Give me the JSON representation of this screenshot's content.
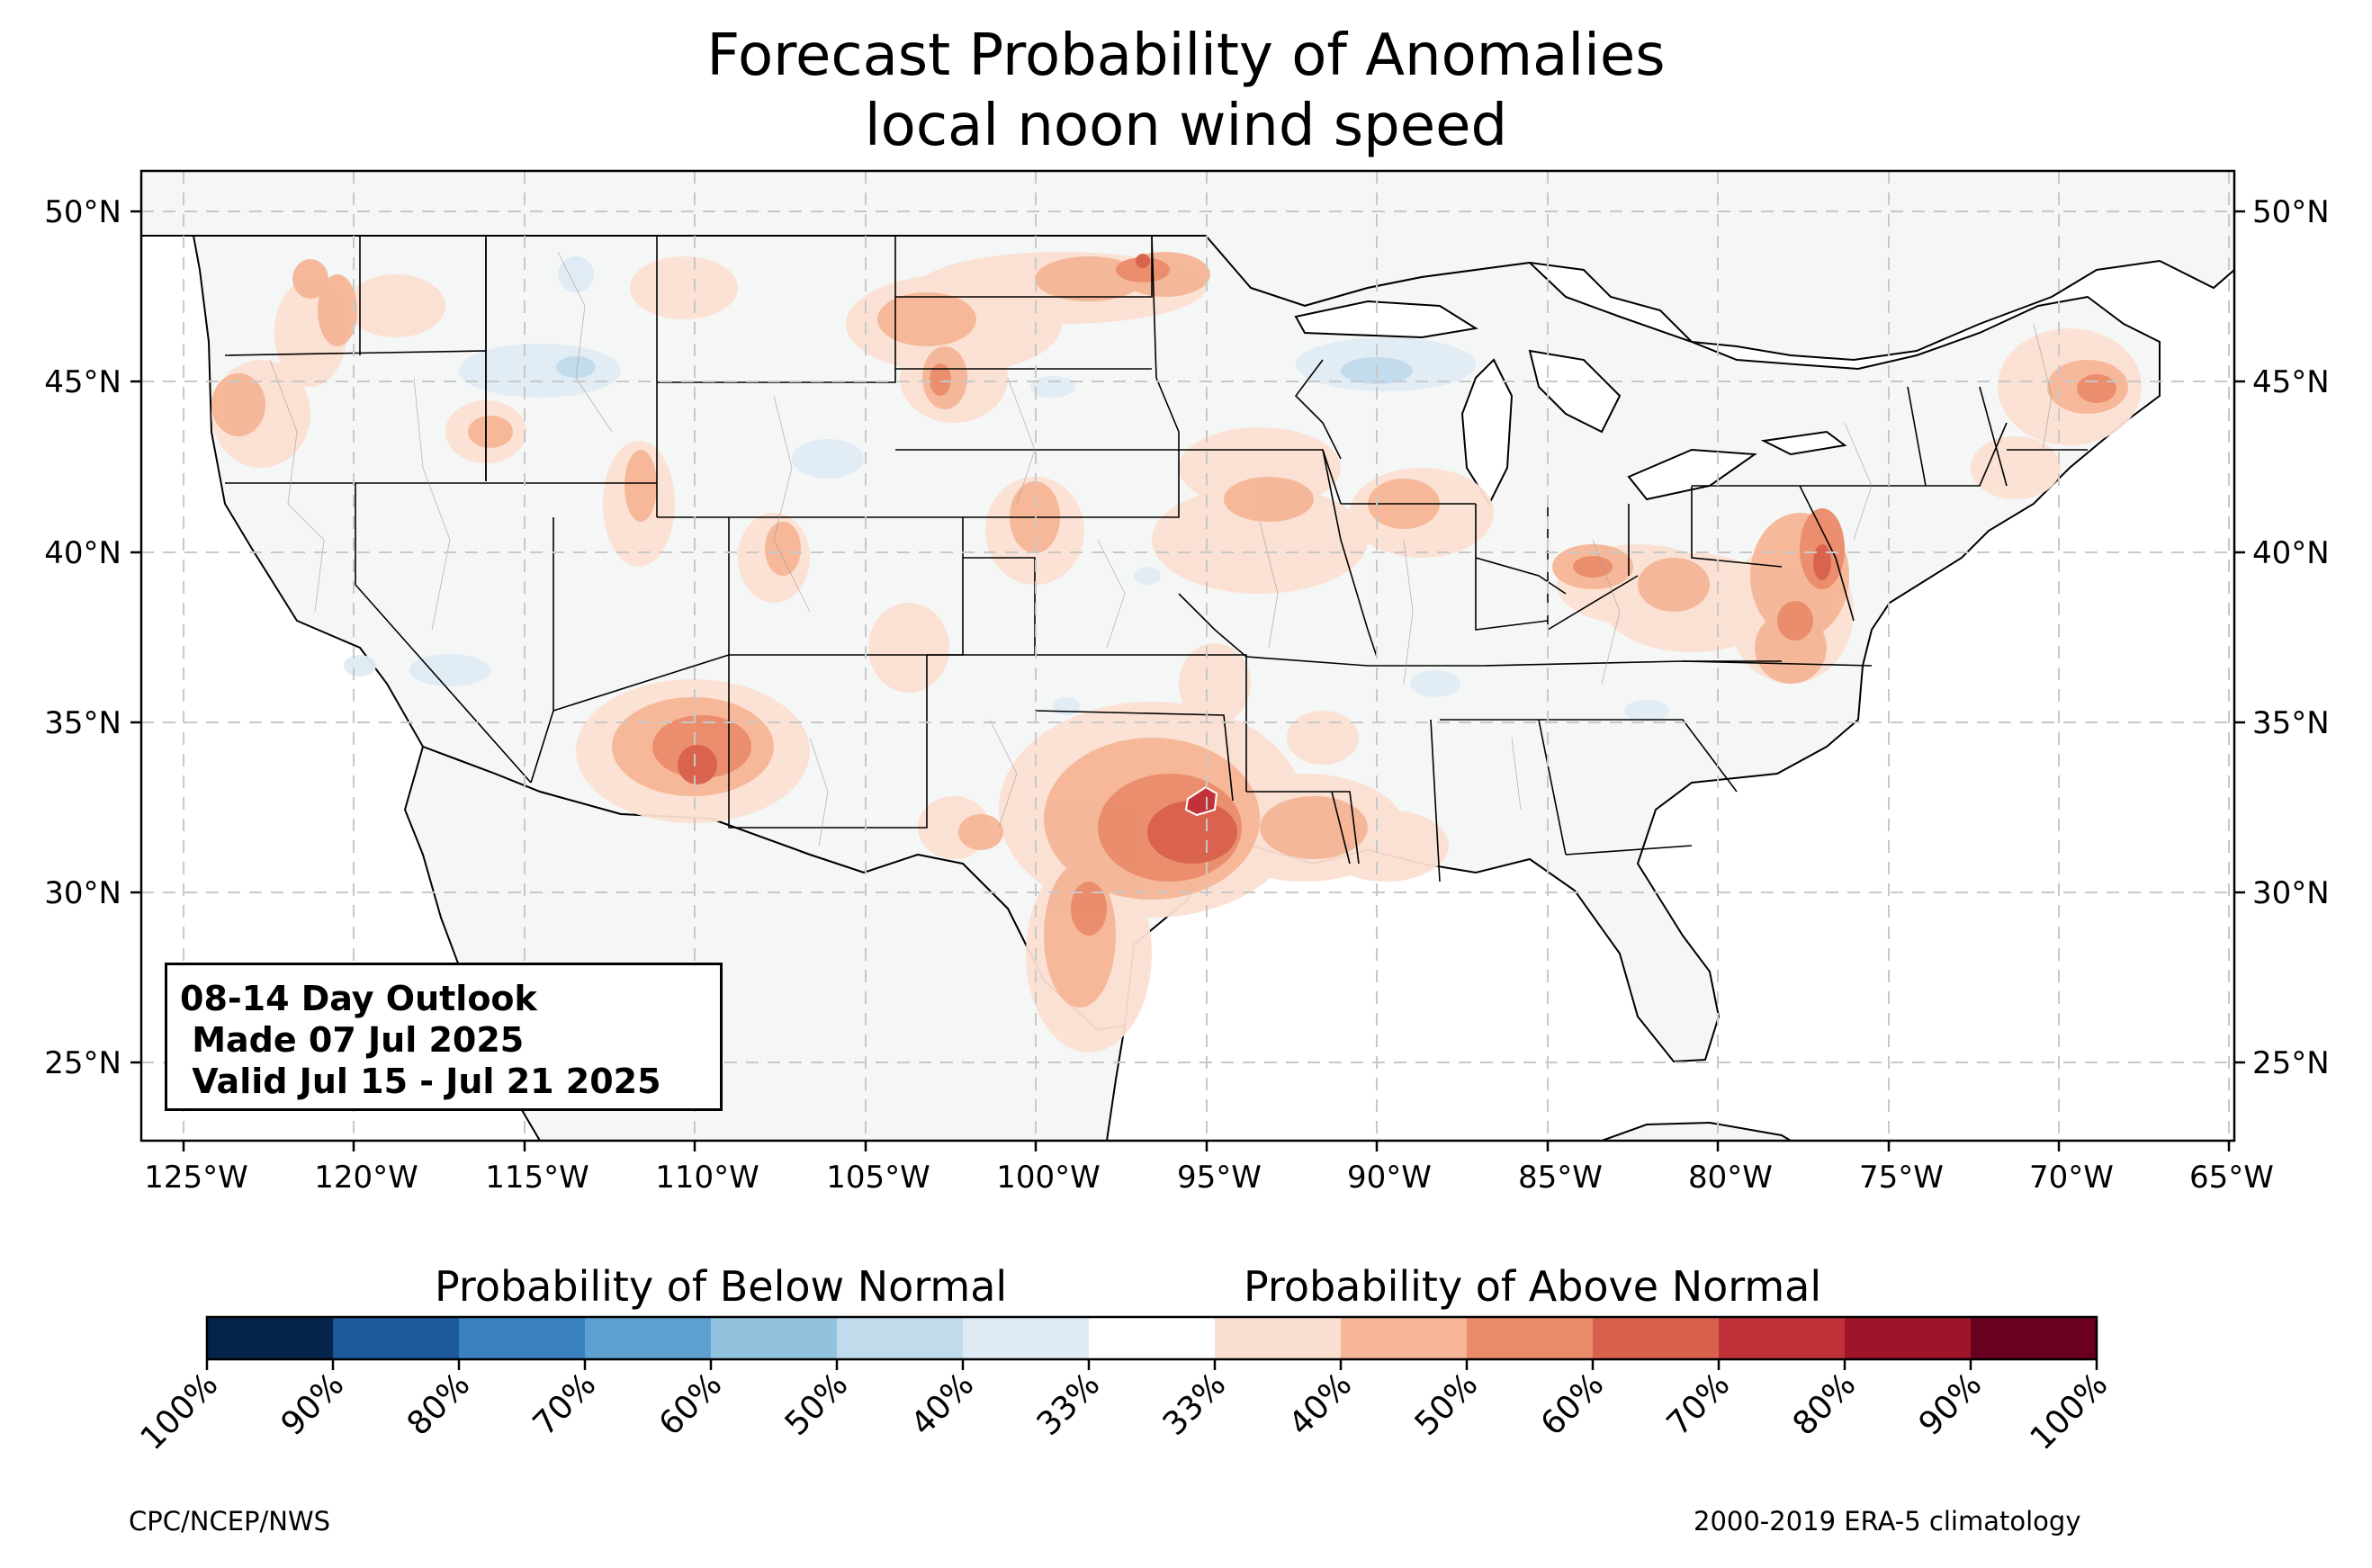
{
  "title": "Forecast Probability of Anomalies",
  "subtitle": "local noon wind speed",
  "outlook": {
    "line1": "08-14 Day Outlook",
    "line2": " Made 07 Jul 2025",
    "line3": " Valid Jul 15 - Jul 21 2025"
  },
  "map": {
    "lon_range": [
      -126.3,
      -64.9
    ],
    "lat_range": [
      22.8,
      51.3
    ],
    "lon_ticks": [
      "125°W",
      "120°W",
      "115°W",
      "110°W",
      "105°W",
      "100°W",
      "95°W",
      "90°W",
      "85°W",
      "80°W",
      "75°W",
      "70°W",
      "65°W"
    ],
    "lat_ticks": [
      "25°N",
      "30°N",
      "35°N",
      "40°N",
      "45°N",
      "50°N"
    ],
    "land_color": "#f5f6f6",
    "grid": "dashed"
  },
  "colorbar": {
    "below_label": "Probability of Below Normal",
    "above_label": "Probability of Above Normal",
    "ticks": [
      "100%",
      "90%",
      "80%",
      "70%",
      "60%",
      "50%",
      "40%",
      "33%",
      "33%",
      "40%",
      "50%",
      "60%",
      "70%",
      "80%",
      "90%",
      "100%"
    ],
    "colors": [
      "#06234a",
      "#1d5a9c",
      "#3a82bf",
      "#5da1d0",
      "#92c3de",
      "#c1dbec",
      "#dfebf4",
      "#ffffff",
      "#fbe0d2",
      "#f5b596",
      "#ea8b6a",
      "#d8614d",
      "#c03238",
      "#9e1428",
      "#6a0020"
    ]
  },
  "credits": {
    "left": "CPC/NCEP/NWS",
    "right": "2000-2019 ERA-5 climatology"
  }
}
